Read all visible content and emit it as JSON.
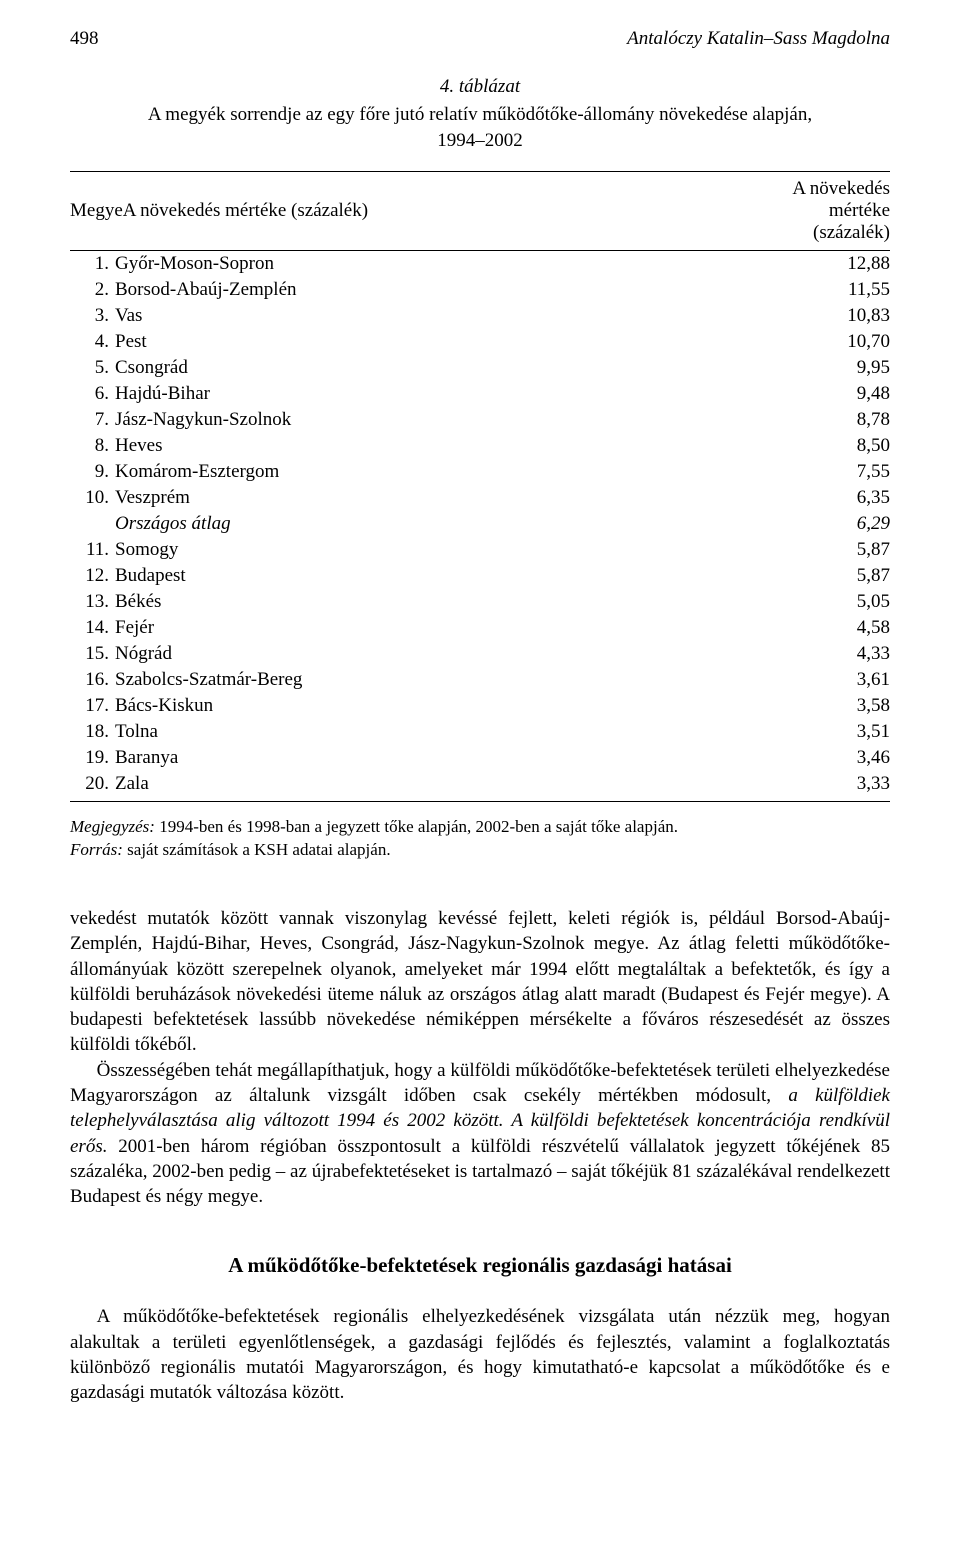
{
  "header": {
    "page_number": "498",
    "authors": "Antalóczy Katalin–Sass Magdolna"
  },
  "table": {
    "number_label": "4. táblázat",
    "title_line1": "A megyék sorrendje az egy főre jutó relatív működőtőke-állomány növekedése alapján,",
    "title_line2": "1994–2002",
    "col_county_label": "MegyeA növekedés mértéke (százalék)",
    "col_value_label": "A növekedés mértéke (százalék)",
    "rows": [
      {
        "rank": "1.",
        "name": "Győr-Moson-Sopron",
        "value": "12,88",
        "italic": false
      },
      {
        "rank": "2.",
        "name": "Borsod-Abaúj-Zemplén",
        "value": "11,55",
        "italic": false
      },
      {
        "rank": "3.",
        "name": "Vas",
        "value": "10,83",
        "italic": false
      },
      {
        "rank": "4.",
        "name": "Pest",
        "value": "10,70",
        "italic": false
      },
      {
        "rank": "5.",
        "name": "Csongrád",
        "value": "9,95",
        "italic": false
      },
      {
        "rank": "6.",
        "name": "Hajdú-Bihar",
        "value": "9,48",
        "italic": false
      },
      {
        "rank": "7.",
        "name": "Jász-Nagykun-Szolnok",
        "value": "8,78",
        "italic": false
      },
      {
        "rank": "8.",
        "name": "Heves",
        "value": "8,50",
        "italic": false
      },
      {
        "rank": "9.",
        "name": "Komárom-Esztergom",
        "value": "7,55",
        "italic": false
      },
      {
        "rank": "10.",
        "name": "Veszprém",
        "value": "6,35",
        "italic": false
      },
      {
        "rank": "",
        "name": "Országos átlag",
        "value": "6,29",
        "italic": true
      },
      {
        "rank": "11.",
        "name": "Somogy",
        "value": "5,87",
        "italic": false
      },
      {
        "rank": "12.",
        "name": "Budapest",
        "value": "5,87",
        "italic": false
      },
      {
        "rank": "13.",
        "name": "Békés",
        "value": "5,05",
        "italic": false
      },
      {
        "rank": "14.",
        "name": "Fejér",
        "value": "4,58",
        "italic": false
      },
      {
        "rank": "15.",
        "name": "Nógrád",
        "value": "4,33",
        "italic": false
      },
      {
        "rank": "16.",
        "name": "Szabolcs-Szatmár-Bereg",
        "value": "3,61",
        "italic": false
      },
      {
        "rank": "17.",
        "name": "Bács-Kiskun",
        "value": "3,58",
        "italic": false
      },
      {
        "rank": "18.",
        "name": "Tolna",
        "value": "3,51",
        "italic": false
      },
      {
        "rank": "19.",
        "name": "Baranya",
        "value": "3,46",
        "italic": false
      },
      {
        "rank": "20.",
        "name": "Zala",
        "value": "3,33",
        "italic": false
      }
    ],
    "note_label": "Megjegyzés:",
    "note_text": " 1994-ben és 1998-ban a jegyzett tőke alapján, 2002-ben a saját tőke alapján.",
    "source_label": "Forrás:",
    "source_text": " saját számítások a KSH adatai alapján."
  },
  "body": {
    "para1": "vekedést mutatók között vannak viszonylag kevéssé fejlett, keleti régiók is, például Borsod-Abaúj-Zemplén, Hajdú-Bihar, Heves, Csongrád, Jász-Nagykun-Szolnok megye. Az átlag feletti működőtőke-állományúak között szerepelnek olyanok, amelyeket már 1994 előtt megtaláltak a befektetők, és így a külföldi beruházások növekedési üteme náluk az országos átlag alatt maradt (Budapest és Fejér megye). A budapesti befektetések lassúbb növekedése némiképpen mérsékelte a főváros részesedését az összes külföldi tőkéből.",
    "para2_plain1": "Összességében tehát megállapíthatjuk, hogy a külföldi működőtőke-befektetések területi elhelyezkedése Magyarországon az általunk vizsgált időben csak csekély mértékben módosult, ",
    "para2_ital": "a külföldiek telephelyválasztása alig változott 1994 és 2002 között. A külföldi befektetések koncentrációja rendkívül erős.",
    "para2_plain2": " 2001-ben három régióban összpontosult a külföldi részvételű vállalatok jegyzett tőkéjének 85 százaléka, 2002-ben pedig – az újrabefektetéseket is tartalmazó – saját tőkéjük 81 százalékával rendelkezett Budapest és négy megye."
  },
  "section": {
    "heading": "A működőtőke-befektetések regionális gazdasági hatásai",
    "para": "A működőtőke-befektetések regionális elhelyezkedésének vizsgálata után nézzük meg, hogyan alakultak a területi egyenlőtlenségek, a gazdasági fejlődés és fejlesztés, valamint a foglalkoztatás különböző regionális mutatói Magyarországon, és hogy kimutatható-e kapcsolat a működőtőke és e gazdasági mutatók változása között."
  }
}
